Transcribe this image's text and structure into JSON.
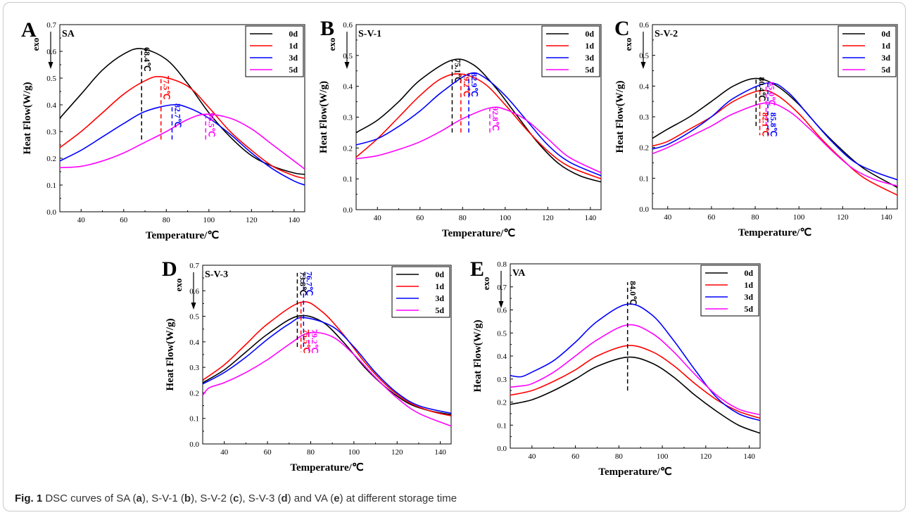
{
  "caption": {
    "label": "Fig. 1",
    "text_1": " DSC curves of SA (",
    "a": "a",
    "text_2": "), S-V-1 (",
    "b": "b",
    "text_3": "), S-V-2 (",
    "c": "c",
    "text_4": "), S-V-3 (",
    "d": "d",
    "text_5": ") and VA (",
    "e": "e",
    "text_6": ") at different storage time"
  },
  "colors": {
    "0d": "#000000",
    "1d": "#ff0000",
    "3d": "#0000ff",
    "5d": "#ff00ff"
  },
  "exo_label": "exo",
  "chart_data": [
    {
      "panel": "A",
      "name": "SA",
      "type": "line",
      "xlabel": "Temperature/℃",
      "ylabel": "Heat Flow(W/g)",
      "xlim": [
        30,
        145
      ],
      "ylim": [
        0,
        0.7
      ],
      "xticks": [
        40,
        60,
        80,
        100,
        120,
        140
      ],
      "yticks": [
        0.0,
        0.1,
        0.2,
        0.3,
        0.4,
        0.5,
        0.6,
        0.7
      ],
      "legend": "top-right",
      "series": [
        {
          "name": "0d",
          "x": [
            30,
            40,
            50,
            60,
            68.4,
            80,
            90,
            100,
            110,
            120,
            130,
            140,
            145
          ],
          "y": [
            0.35,
            0.44,
            0.53,
            0.59,
            0.61,
            0.57,
            0.48,
            0.37,
            0.28,
            0.21,
            0.17,
            0.145,
            0.14
          ]
        },
        {
          "name": "1d",
          "x": [
            30,
            40,
            50,
            60,
            70,
            77.5,
            90,
            100,
            110,
            120,
            130,
            140,
            145
          ],
          "y": [
            0.24,
            0.3,
            0.37,
            0.44,
            0.49,
            0.505,
            0.47,
            0.39,
            0.3,
            0.23,
            0.17,
            0.135,
            0.125
          ]
        },
        {
          "name": "3d",
          "x": [
            30,
            40,
            50,
            60,
            70,
            82.7,
            90,
            100,
            110,
            120,
            130,
            140,
            145
          ],
          "y": [
            0.19,
            0.23,
            0.28,
            0.33,
            0.375,
            0.4,
            0.39,
            0.35,
            0.29,
            0.22,
            0.16,
            0.115,
            0.1
          ]
        },
        {
          "name": "5d",
          "x": [
            30,
            40,
            50,
            60,
            70,
            80,
            90,
            98.5,
            110,
            120,
            130,
            140,
            145
          ],
          "y": [
            0.165,
            0.17,
            0.19,
            0.22,
            0.26,
            0.3,
            0.345,
            0.365,
            0.35,
            0.31,
            0.25,
            0.19,
            0.16
          ]
        }
      ],
      "annotations": [
        {
          "series": "0d",
          "x": 68.4,
          "text": "68.4℃",
          "from": 0.27,
          "to": 0.61,
          "label_side": "top"
        },
        {
          "series": "1d",
          "x": 77.5,
          "text": "77.5℃",
          "from": 0.27,
          "to": 0.505,
          "label_side": "top"
        },
        {
          "series": "3d",
          "x": 82.7,
          "text": "82.7℃",
          "from": 0.27,
          "to": 0.4,
          "label_side": "top"
        },
        {
          "series": "5d",
          "x": 98.5,
          "text": "98.5℃",
          "from": 0.27,
          "to": 0.365,
          "label_side": "top"
        }
      ]
    },
    {
      "panel": "B",
      "name": "S-V-1",
      "type": "line",
      "xlabel": "Temperature/℃",
      "ylabel": "Heat Flow(W/g)",
      "xlim": [
        30,
        145
      ],
      "ylim": [
        0,
        0.6
      ],
      "xticks": [
        40,
        60,
        80,
        100,
        120,
        140
      ],
      "yticks": [
        0.0,
        0.1,
        0.2,
        0.3,
        0.4,
        0.5,
        0.6
      ],
      "legend": "top-right",
      "series": [
        {
          "name": "0d",
          "x": [
            30,
            40,
            50,
            60,
            75.1,
            85,
            95,
            105,
            115,
            125,
            135,
            145
          ],
          "y": [
            0.25,
            0.29,
            0.35,
            0.42,
            0.485,
            0.47,
            0.4,
            0.31,
            0.22,
            0.15,
            0.11,
            0.09
          ]
        },
        {
          "name": "1d",
          "x": [
            30,
            40,
            50,
            60,
            70,
            79.2,
            90,
            100,
            110,
            120,
            130,
            145
          ],
          "y": [
            0.17,
            0.23,
            0.3,
            0.37,
            0.425,
            0.44,
            0.41,
            0.34,
            0.26,
            0.19,
            0.14,
            0.1
          ]
        },
        {
          "name": "3d",
          "x": [
            30,
            40,
            50,
            60,
            70,
            82.9,
            90,
            100,
            110,
            120,
            130,
            145
          ],
          "y": [
            0.21,
            0.23,
            0.27,
            0.32,
            0.38,
            0.44,
            0.43,
            0.37,
            0.29,
            0.21,
            0.155,
            0.11
          ]
        },
        {
          "name": "5d",
          "x": [
            30,
            40,
            50,
            60,
            70,
            80,
            92.8,
            100,
            110,
            120,
            130,
            145
          ],
          "y": [
            0.165,
            0.175,
            0.195,
            0.22,
            0.255,
            0.295,
            0.33,
            0.325,
            0.29,
            0.23,
            0.17,
            0.12
          ]
        }
      ],
      "annotations": [
        {
          "series": "0d",
          "x": 75.1,
          "text": "75.1℃",
          "from": 0.25,
          "to": 0.485,
          "label_side": "top"
        },
        {
          "series": "1d",
          "x": 79.2,
          "text": "79.2℃",
          "from": 0.25,
          "to": 0.44,
          "label_side": "top"
        },
        {
          "series": "3d",
          "x": 82.9,
          "text": "82.9℃",
          "from": 0.25,
          "to": 0.44,
          "label_side": "top"
        },
        {
          "series": "5d",
          "x": 92.8,
          "text": "92.8℃",
          "from": 0.25,
          "to": 0.33,
          "label_side": "top"
        }
      ]
    },
    {
      "panel": "C",
      "name": "S-V-2",
      "type": "line",
      "xlabel": "Temperature/℃",
      "ylabel": "Heat Flow(W/g)",
      "xlim": [
        33,
        145
      ],
      "ylim": [
        0,
        0.6
      ],
      "xticks": [
        40,
        60,
        80,
        100,
        120,
        140
      ],
      "yticks": [
        0.0,
        0.1,
        0.2,
        0.3,
        0.4,
        0.5,
        0.6
      ],
      "legend": "top-right",
      "series": [
        {
          "name": "0d",
          "x": [
            33,
            40,
            50,
            60,
            70,
            80.4,
            90,
            100,
            110,
            120,
            130,
            145
          ],
          "y": [
            0.23,
            0.26,
            0.3,
            0.35,
            0.4,
            0.425,
            0.4,
            0.34,
            0.26,
            0.19,
            0.13,
            0.07
          ]
        },
        {
          "name": "1d",
          "x": [
            33,
            40,
            50,
            60,
            70,
            82.1,
            90,
            100,
            110,
            120,
            130,
            145
          ],
          "y": [
            0.205,
            0.22,
            0.26,
            0.3,
            0.35,
            0.385,
            0.37,
            0.31,
            0.23,
            0.16,
            0.1,
            0.045
          ]
        },
        {
          "name": "3d",
          "x": [
            33,
            40,
            50,
            60,
            70,
            85.8,
            95,
            105,
            115,
            125,
            135,
            145
          ],
          "y": [
            0.195,
            0.21,
            0.25,
            0.3,
            0.36,
            0.41,
            0.38,
            0.3,
            0.22,
            0.155,
            0.12,
            0.095
          ]
        },
        {
          "name": "5d",
          "x": [
            33,
            40,
            50,
            60,
            70,
            85.0,
            95,
            105,
            115,
            125,
            135,
            145
          ],
          "y": [
            0.18,
            0.2,
            0.235,
            0.27,
            0.31,
            0.345,
            0.32,
            0.26,
            0.19,
            0.13,
            0.095,
            0.075
          ]
        }
      ],
      "annotations": [
        {
          "series": "0d",
          "x": 80.4,
          "text": "80.4℃",
          "from": 0.27,
          "to": 0.425,
          "label_side": "top"
        },
        {
          "series": "5d",
          "x": 85.0,
          "text": "85.0℃",
          "from": 0.27,
          "to": 0.41,
          "label_side": "top"
        },
        {
          "series": "1d",
          "x": 82.1,
          "text": "82.1℃",
          "from": 0.385,
          "to": 0.24,
          "label_side": "bottom"
        },
        {
          "series": "3d",
          "x": 85.8,
          "text": "85.8℃",
          "from": 0.41,
          "to": 0.24,
          "label_side": "bottom"
        }
      ]
    },
    {
      "panel": "D",
      "name": "S-V-3",
      "type": "line",
      "xlabel": "Temperature/℃",
      "ylabel": "Heat Flow(W/g)",
      "xlim": [
        30,
        145
      ],
      "ylim": [
        0,
        0.7
      ],
      "xticks": [
        40,
        60,
        80,
        100,
        120,
        140
      ],
      "yticks": [
        0.0,
        0.1,
        0.2,
        0.3,
        0.4,
        0.5,
        0.6,
        0.7
      ],
      "legend": "top-right",
      "series": [
        {
          "name": "0d",
          "x": [
            30,
            40,
            50,
            60,
            73.8,
            85,
            95,
            105,
            115,
            125,
            135,
            145
          ],
          "y": [
            0.24,
            0.29,
            0.36,
            0.43,
            0.5,
            0.48,
            0.4,
            0.3,
            0.22,
            0.16,
            0.13,
            0.115
          ]
        },
        {
          "name": "1d",
          "x": [
            30,
            40,
            50,
            60,
            75.5,
            85,
            95,
            105,
            115,
            125,
            135,
            145
          ],
          "y": [
            0.25,
            0.31,
            0.39,
            0.47,
            0.555,
            0.52,
            0.43,
            0.32,
            0.23,
            0.165,
            0.13,
            0.11
          ]
        },
        {
          "name": "3d",
          "x": [
            30,
            40,
            50,
            60,
            70,
            76.7,
            90,
            100,
            110,
            120,
            130,
            145
          ],
          "y": [
            0.235,
            0.28,
            0.34,
            0.41,
            0.47,
            0.495,
            0.46,
            0.38,
            0.28,
            0.2,
            0.15,
            0.12
          ]
        },
        {
          "name": "5d",
          "x": [
            30,
            33,
            40,
            50,
            60,
            70,
            79.2,
            90,
            100,
            110,
            120,
            130,
            145
          ],
          "y": [
            0.19,
            0.22,
            0.24,
            0.28,
            0.33,
            0.39,
            0.435,
            0.42,
            0.35,
            0.26,
            0.18,
            0.12,
            0.07
          ]
        }
      ],
      "annotations": [
        {
          "series": "0d",
          "x": 73.8,
          "text": "73.8℃",
          "from": 0.38,
          "to": 0.67,
          "label_side": "top"
        },
        {
          "series": "3d",
          "x": 76.7,
          "text": "76.7℃",
          "from": 0.38,
          "to": 0.67,
          "label_side": "top"
        },
        {
          "series": "1d",
          "x": 75.5,
          "text": "75.5℃",
          "from": 0.555,
          "to": 0.36,
          "label_side": "bottom"
        },
        {
          "series": "5d",
          "x": 79.2,
          "text": "79.2℃",
          "from": 0.435,
          "to": 0.36,
          "label_side": "bottom"
        }
      ]
    },
    {
      "panel": "E",
      "name": "VA",
      "type": "line",
      "xlabel": "Temperature/℃",
      "ylabel": "Heat Flow(W/g)",
      "xlim": [
        30,
        145
      ],
      "ylim": [
        0,
        0.8
      ],
      "xticks": [
        40,
        60,
        80,
        100,
        120,
        140
      ],
      "yticks": [
        0.0,
        0.1,
        0.2,
        0.3,
        0.4,
        0.5,
        0.6,
        0.7,
        0.8
      ],
      "legend": "top-right",
      "series": [
        {
          "name": "0d",
          "x": [
            30,
            40,
            50,
            60,
            70,
            84,
            95,
            105,
            115,
            125,
            135,
            145
          ],
          "y": [
            0.19,
            0.21,
            0.25,
            0.3,
            0.355,
            0.395,
            0.37,
            0.31,
            0.23,
            0.16,
            0.1,
            0.065
          ]
        },
        {
          "name": "1d",
          "x": [
            30,
            40,
            50,
            60,
            70,
            84,
            95,
            105,
            115,
            125,
            135,
            145
          ],
          "y": [
            0.23,
            0.25,
            0.29,
            0.34,
            0.4,
            0.445,
            0.42,
            0.36,
            0.28,
            0.21,
            0.16,
            0.13
          ]
        },
        {
          "name": "3d",
          "x": [
            30,
            35,
            40,
            50,
            60,
            70,
            84,
            95,
            105,
            115,
            125,
            135,
            145
          ],
          "y": [
            0.315,
            0.31,
            0.33,
            0.38,
            0.46,
            0.55,
            0.625,
            0.58,
            0.47,
            0.34,
            0.22,
            0.15,
            0.12
          ]
        },
        {
          "name": "5d",
          "x": [
            30,
            35,
            40,
            50,
            60,
            70,
            84,
            95,
            105,
            115,
            125,
            135,
            145
          ],
          "y": [
            0.265,
            0.27,
            0.28,
            0.33,
            0.4,
            0.47,
            0.535,
            0.5,
            0.42,
            0.32,
            0.23,
            0.17,
            0.145
          ]
        }
      ],
      "annotations": [
        {
          "series": "0d",
          "x": 84,
          "text": "84.0℃",
          "from": 0.25,
          "to": 0.72,
          "label_side": "top"
        }
      ]
    }
  ]
}
